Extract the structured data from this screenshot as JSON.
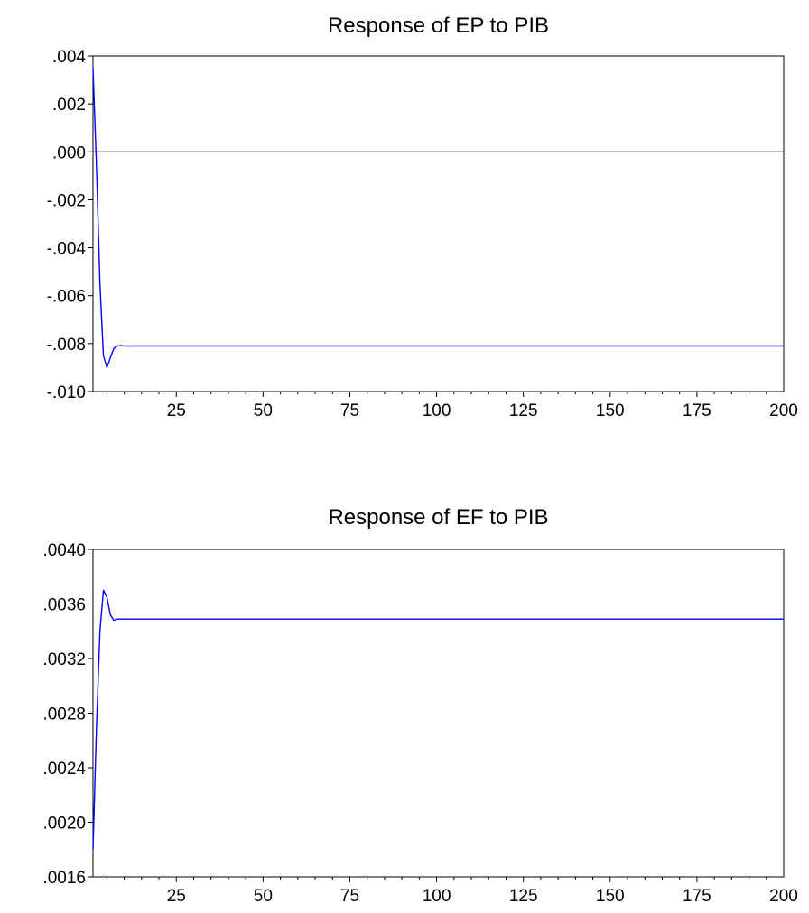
{
  "chart_data": [
    {
      "type": "line",
      "title": "Response of EP to PIB",
      "xlabel": "",
      "ylabel": "",
      "xlim": [
        1,
        200
      ],
      "ylim": [
        -0.01,
        0.004
      ],
      "xticks": [
        25,
        50,
        75,
        100,
        125,
        150,
        175,
        200
      ],
      "xtick_labels": [
        "25",
        "50",
        "75",
        "100",
        "125",
        "150",
        "175",
        "200"
      ],
      "yticks": [
        0.004,
        0.002,
        0.0,
        -0.002,
        -0.004,
        -0.006,
        -0.008,
        -0.01
      ],
      "ytick_labels": [
        ".004",
        ".002",
        ".000",
        "-.002",
        "-.004",
        "-.006",
        "-.008",
        "-.010"
      ],
      "zero_line": true,
      "grid": false,
      "line_color": "#0000ff",
      "series": [
        {
          "x": [
            1,
            2,
            3,
            4,
            5,
            6,
            7,
            8,
            9,
            10,
            11,
            12,
            15,
            20,
            50,
            100,
            150,
            200
          ],
          "values": [
            0.0035,
            -0.0006,
            -0.0055,
            -0.0085,
            -0.009,
            -0.0086,
            -0.0082,
            -0.0081,
            -0.00808,
            -0.0081,
            -0.0081,
            -0.0081,
            -0.0081,
            -0.0081,
            -0.0081,
            -0.0081,
            -0.0081,
            -0.0081
          ]
        }
      ]
    },
    {
      "type": "line",
      "title": "Response of EF to PIB",
      "xlabel": "",
      "ylabel": "",
      "xlim": [
        1,
        200
      ],
      "ylim": [
        0.0016,
        0.004
      ],
      "xticks": [
        25,
        50,
        75,
        100,
        125,
        150,
        175,
        200
      ],
      "xtick_labels": [
        "25",
        "50",
        "75",
        "100",
        "125",
        "150",
        "175",
        "200"
      ],
      "yticks": [
        0.004,
        0.0036,
        0.0032,
        0.0028,
        0.0024,
        0.002,
        0.0016
      ],
      "ytick_labels": [
        ".0040",
        ".0036",
        ".0032",
        ".0028",
        ".0024",
        ".0020",
        ".0016"
      ],
      "zero_line": false,
      "grid": false,
      "line_color": "#0000ff",
      "series": [
        {
          "x": [
            1,
            2,
            3,
            4,
            5,
            6,
            7,
            8,
            9,
            10,
            11,
            12,
            15,
            20,
            50,
            100,
            150,
            200
          ],
          "values": [
            0.0018,
            0.0027,
            0.0034,
            0.0037,
            0.00365,
            0.00352,
            0.00348,
            0.00349,
            0.00349,
            0.00349,
            0.00349,
            0.00349,
            0.00349,
            0.00349,
            0.00349,
            0.00349,
            0.00349,
            0.00349
          ]
        }
      ]
    }
  ]
}
